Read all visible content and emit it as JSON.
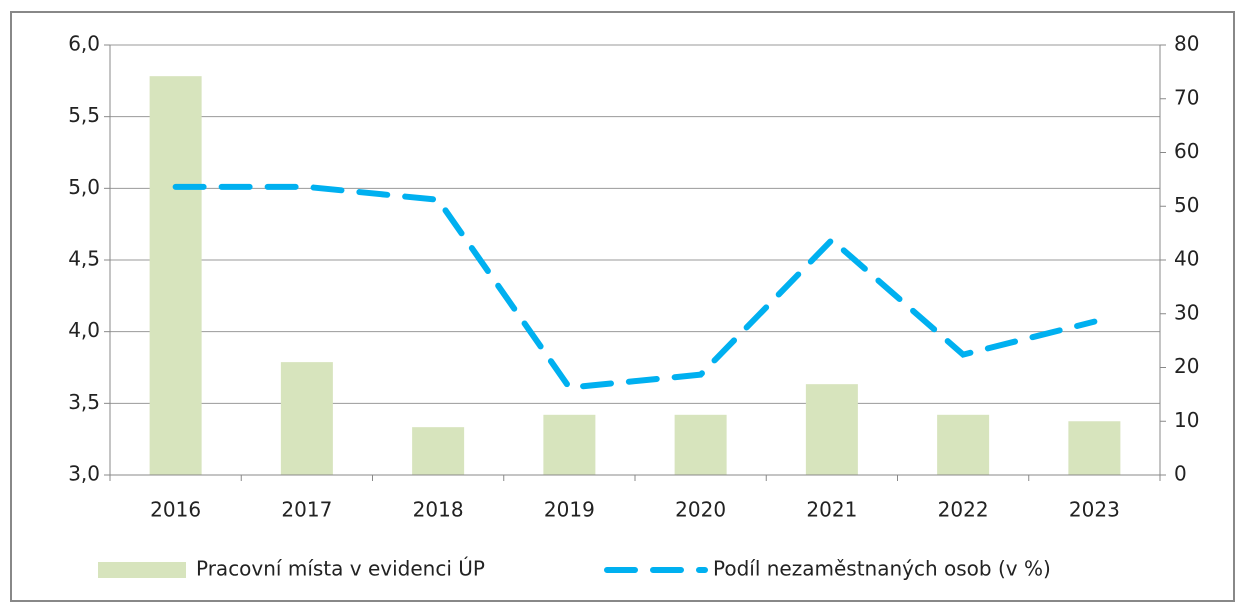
{
  "chart_data": {
    "type": "bar-line",
    "categories": [
      "2016",
      "2017",
      "2018",
      "2019",
      "2020",
      "2021",
      "2022",
      "2023"
    ],
    "series": [
      {
        "name": "Pracovní místa v evidenci ÚP",
        "type": "bar",
        "axis": "y2",
        "color": "#d7e4bd",
        "values": [
          74.2,
          21.0,
          8.9,
          11.2,
          11.2,
          16.9,
          11.2,
          10.0
        ]
      },
      {
        "name": "Podíl nezaměstnaných osob (v %)",
        "type": "line",
        "axis": "y",
        "color": "#00b0f0",
        "values": [
          5.01,
          5.01,
          4.92,
          3.61,
          3.7,
          4.64,
          3.84,
          4.07
        ]
      }
    ],
    "ylim": [
      3.0,
      6.0
    ],
    "yticks": [
      {
        "value": 3.0,
        "label": "3,0"
      },
      {
        "value": 3.5,
        "label": "3,5"
      },
      {
        "value": 4.0,
        "label": "4,0"
      },
      {
        "value": 4.5,
        "label": "4,5"
      },
      {
        "value": 5.0,
        "label": "5,0"
      },
      {
        "value": 5.5,
        "label": "5,5"
      },
      {
        "value": 6.0,
        "label": "6,0"
      }
    ],
    "y2lim": [
      0,
      80
    ],
    "y2ticks": [
      0,
      10,
      20,
      30,
      40,
      50,
      60,
      70,
      80
    ],
    "grid": true
  }
}
